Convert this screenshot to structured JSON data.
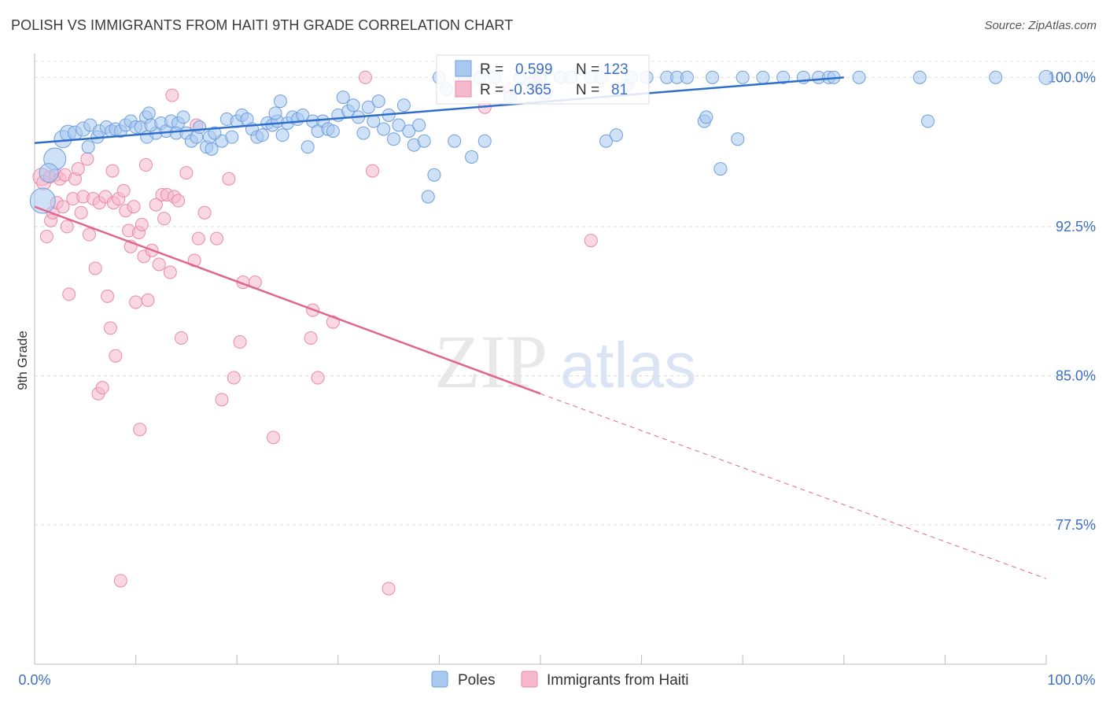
{
  "header": {
    "title": "POLISH VS IMMIGRANTS FROM HAITI 9TH GRADE CORRELATION CHART",
    "source": "Source: ZipAtlas.com"
  },
  "watermark": {
    "zip": "ZIP",
    "atlas": "atlas"
  },
  "colors": {
    "poles_fill": "#a8c8f0",
    "poles_stroke": "#6f9fdc",
    "poles_line": "#2f6fcb",
    "haiti_fill": "#f5b8cc",
    "haiti_stroke": "#e88aa8",
    "haiti_line": "#e06690",
    "axis_text": "#3d6fc4"
  },
  "stats": {
    "r_label": "R =",
    "n_label": "N =",
    "poles": {
      "r": "0.599",
      "n": "123"
    },
    "haiti": {
      "r": "-0.365",
      "n": "81"
    }
  },
  "legend": {
    "poles": "Poles",
    "haiti": "Immigrants from Haiti"
  },
  "chart_data": {
    "type": "scatter",
    "xlabel": "",
    "ylabel": "9th Grade",
    "xlim": [
      0,
      100
    ],
    "ylim": [
      70.5,
      101.2
    ],
    "x_tick_labels": [
      "0.0%",
      "100.0%"
    ],
    "y_ticks": [
      {
        "value": 100.0,
        "label": "100.0%"
      },
      {
        "value": 92.5,
        "label": "92.5%"
      },
      {
        "value": 85.0,
        "label": "85.0%"
      },
      {
        "value": 77.5,
        "label": "77.5%"
      }
    ],
    "grid": true,
    "legend_position": "bottom",
    "series": [
      {
        "name": "Poles",
        "trend": {
          "x": [
            0,
            80
          ],
          "y": [
            96.7,
            100.0
          ],
          "dashed_to": null
        },
        "points": [
          [
            0.8,
            93.8,
            16
          ],
          [
            2.0,
            95.9,
            14
          ],
          [
            1.4,
            95.2,
            12
          ],
          [
            2.8,
            96.9,
            11
          ],
          [
            3.3,
            97.2,
            10
          ],
          [
            4.0,
            97.2,
            9
          ],
          [
            4.8,
            97.4,
            9
          ],
          [
            5.5,
            97.6,
            8
          ],
          [
            6.2,
            97.0,
            8
          ],
          [
            6.4,
            97.3,
            8
          ],
          [
            5.3,
            96.5,
            8
          ],
          [
            7.1,
            97.5,
            8
          ],
          [
            7.6,
            97.3,
            8
          ],
          [
            8.0,
            97.4,
            8
          ],
          [
            8.5,
            97.3,
            8
          ],
          [
            9.0,
            97.6,
            8
          ],
          [
            9.5,
            97.8,
            8
          ],
          [
            10.0,
            97.5,
            8
          ],
          [
            10.5,
            97.5,
            8
          ],
          [
            11.0,
            98.0,
            8
          ],
          [
            11.3,
            98.2,
            8
          ],
          [
            11.1,
            97.0,
            8
          ],
          [
            12.0,
            97.2,
            8
          ],
          [
            11.5,
            97.6,
            8
          ],
          [
            12.5,
            97.7,
            8
          ],
          [
            13.0,
            97.3,
            8
          ],
          [
            13.5,
            97.8,
            8
          ],
          [
            14.2,
            97.7,
            8
          ],
          [
            14.0,
            97.2,
            8
          ],
          [
            14.7,
            98.0,
            8
          ],
          [
            15.0,
            97.2,
            8
          ],
          [
            15.5,
            96.8,
            8
          ],
          [
            16.0,
            97.0,
            8
          ],
          [
            16.3,
            97.5,
            8
          ],
          [
            17.0,
            96.5,
            8
          ],
          [
            17.5,
            96.4,
            8
          ],
          [
            17.3,
            97.0,
            8
          ],
          [
            18.5,
            96.8,
            8
          ],
          [
            17.8,
            97.2,
            8
          ],
          [
            19.0,
            97.9,
            8
          ],
          [
            19.5,
            97.0,
            8
          ],
          [
            20.0,
            97.8,
            8
          ],
          [
            20.5,
            98.1,
            8
          ],
          [
            21.0,
            97.9,
            8
          ],
          [
            21.5,
            97.4,
            8
          ],
          [
            22.0,
            97.0,
            8
          ],
          [
            22.5,
            97.1,
            8
          ],
          [
            23.0,
            97.7,
            8
          ],
          [
            23.5,
            97.6,
            8
          ],
          [
            24.0,
            97.8,
            8
          ],
          [
            23.8,
            98.2,
            8
          ],
          [
            24.3,
            98.8,
            8
          ],
          [
            24.5,
            97.1,
            8
          ],
          [
            25.0,
            97.7,
            8
          ],
          [
            25.5,
            98.0,
            8
          ],
          [
            26.0,
            97.9,
            8
          ],
          [
            26.5,
            98.1,
            8
          ],
          [
            27.0,
            96.5,
            8
          ],
          [
            27.5,
            97.8,
            8
          ],
          [
            28.0,
            97.3,
            8
          ],
          [
            28.5,
            97.8,
            8
          ],
          [
            29.0,
            97.4,
            8
          ],
          [
            29.5,
            97.3,
            8
          ],
          [
            30.0,
            98.1,
            8
          ],
          [
            30.5,
            99.0,
            8
          ],
          [
            31.0,
            98.3,
            8
          ],
          [
            31.5,
            98.6,
            8
          ],
          [
            32.0,
            98.0,
            8
          ],
          [
            32.5,
            97.2,
            8
          ],
          [
            33.0,
            98.5,
            8
          ],
          [
            33.5,
            97.8,
            8
          ],
          [
            34.0,
            98.8,
            8
          ],
          [
            34.5,
            97.4,
            8
          ],
          [
            35.0,
            98.1,
            8
          ],
          [
            35.5,
            96.9,
            8
          ],
          [
            36.0,
            97.6,
            8
          ],
          [
            36.5,
            98.6,
            8
          ],
          [
            37.0,
            97.3,
            8
          ],
          [
            37.5,
            96.6,
            8
          ],
          [
            38.0,
            97.6,
            8
          ],
          [
            38.5,
            96.8,
            8
          ],
          [
            38.9,
            94.0,
            8
          ],
          [
            39.5,
            95.1,
            8
          ],
          [
            40.0,
            100.0,
            8
          ],
          [
            40.7,
            99.4,
            8
          ],
          [
            41.5,
            96.8,
            8
          ],
          [
            42.5,
            100.0,
            8
          ],
          [
            43.2,
            96.0,
            8
          ],
          [
            44.0,
            100.0,
            8
          ],
          [
            44.5,
            96.8,
            8
          ],
          [
            45.5,
            100.0,
            8
          ],
          [
            47.0,
            99.0,
            8
          ],
          [
            48.0,
            100.0,
            8
          ],
          [
            49.0,
            99.7,
            8
          ],
          [
            50.0,
            100.0,
            8
          ],
          [
            50.5,
            99.2,
            8
          ],
          [
            52.0,
            100.0,
            8
          ],
          [
            53.0,
            100.0,
            8
          ],
          [
            55.0,
            100.0,
            8
          ],
          [
            56.0,
            100.0,
            8
          ],
          [
            56.5,
            96.8,
            8
          ],
          [
            57.5,
            97.1,
            8
          ],
          [
            58.5,
            99.6,
            8
          ],
          [
            59.0,
            100.0,
            8
          ],
          [
            60.5,
            100.0,
            8
          ],
          [
            62.5,
            100.0,
            8
          ],
          [
            63.5,
            100.0,
            8
          ],
          [
            64.5,
            100.0,
            8
          ],
          [
            66.2,
            97.8,
            8
          ],
          [
            66.4,
            98.0,
            8
          ],
          [
            67.0,
            100.0,
            8
          ],
          [
            67.8,
            95.4,
            8
          ],
          [
            69.5,
            96.9,
            8
          ],
          [
            70.0,
            100.0,
            8
          ],
          [
            72.0,
            100.0,
            8
          ],
          [
            74.0,
            100.0,
            8
          ],
          [
            76.0,
            100.0,
            8
          ],
          [
            77.5,
            100.0,
            8
          ],
          [
            78.5,
            100.0,
            8
          ],
          [
            79.0,
            100.0,
            8
          ],
          [
            81.5,
            100.0,
            8
          ],
          [
            87.5,
            100.0,
            8
          ],
          [
            88.3,
            97.8,
            8
          ],
          [
            95.0,
            100.0,
            8
          ],
          [
            100.0,
            100.0,
            9
          ]
        ]
      },
      {
        "name": "Immigrants from Haiti",
        "trend": {
          "x": [
            0,
            50
          ],
          "y": [
            93.5,
            84.1
          ],
          "dashed_to": [
            100,
            74.8
          ]
        },
        "points": [
          [
            0.7,
            95.0,
            11
          ],
          [
            0.9,
            94.7,
            9
          ],
          [
            1.2,
            92.0,
            8
          ],
          [
            1.5,
            95.0,
            8
          ],
          [
            1.6,
            92.8,
            8
          ],
          [
            1.8,
            93.2,
            8
          ],
          [
            2.1,
            95.1,
            8
          ],
          [
            2.2,
            93.7,
            8
          ],
          [
            2.5,
            94.9,
            8
          ],
          [
            2.8,
            93.5,
            8
          ],
          [
            3.0,
            95.1,
            8
          ],
          [
            3.2,
            92.5,
            8
          ],
          [
            3.4,
            89.1,
            8
          ],
          [
            3.8,
            93.9,
            8
          ],
          [
            4.0,
            94.9,
            8
          ],
          [
            4.3,
            95.4,
            8
          ],
          [
            4.6,
            93.2,
            8
          ],
          [
            4.8,
            94.0,
            8
          ],
          [
            5.2,
            95.9,
            8
          ],
          [
            5.4,
            92.1,
            8
          ],
          [
            5.8,
            93.9,
            8
          ],
          [
            6.0,
            90.4,
            8
          ],
          [
            6.4,
            93.7,
            8
          ],
          [
            6.3,
            84.1,
            8
          ],
          [
            6.7,
            84.4,
            8
          ],
          [
            7.0,
            94.0,
            8
          ],
          [
            7.2,
            89.0,
            8
          ],
          [
            7.5,
            87.4,
            8
          ],
          [
            7.8,
            93.7,
            8
          ],
          [
            7.7,
            95.3,
            8
          ],
          [
            8.0,
            86.0,
            8
          ],
          [
            8.3,
            93.9,
            8
          ],
          [
            8.5,
            74.7,
            8
          ],
          [
            8.8,
            94.3,
            8
          ],
          [
            9.0,
            93.3,
            8
          ],
          [
            9.3,
            92.3,
            8
          ],
          [
            9.5,
            91.5,
            8
          ],
          [
            9.8,
            93.5,
            8
          ],
          [
            10.0,
            88.7,
            8
          ],
          [
            10.3,
            92.2,
            8
          ],
          [
            10.6,
            92.6,
            8
          ],
          [
            10.4,
            82.3,
            8
          ],
          [
            10.8,
            91.0,
            8
          ],
          [
            11.0,
            95.6,
            8
          ],
          [
            11.2,
            88.8,
            8
          ],
          [
            11.6,
            91.3,
            8
          ],
          [
            12.0,
            93.6,
            8
          ],
          [
            12.3,
            90.6,
            8
          ],
          [
            12.6,
            94.1,
            8
          ],
          [
            12.8,
            92.9,
            8
          ],
          [
            13.1,
            94.1,
            8
          ],
          [
            13.4,
            90.2,
            8
          ],
          [
            13.8,
            94.0,
            8
          ],
          [
            14.2,
            93.8,
            8
          ],
          [
            14.5,
            86.9,
            8
          ],
          [
            15.0,
            95.2,
            8
          ],
          [
            15.8,
            90.8,
            8
          ],
          [
            16.2,
            91.9,
            8
          ],
          [
            16.8,
            93.2,
            8
          ],
          [
            18.0,
            91.9,
            8
          ],
          [
            18.5,
            83.8,
            8
          ],
          [
            19.2,
            94.9,
            8
          ],
          [
            19.7,
            84.9,
            8
          ],
          [
            20.3,
            86.7,
            8
          ],
          [
            20.6,
            89.7,
            8
          ],
          [
            21.8,
            89.7,
            8
          ],
          [
            23.6,
            81.9,
            8
          ],
          [
            27.3,
            86.9,
            8
          ],
          [
            27.5,
            88.3,
            8
          ],
          [
            28.0,
            84.9,
            8
          ],
          [
            29.5,
            87.7,
            8
          ],
          [
            32.7,
            100.0,
            8
          ],
          [
            33.4,
            95.3,
            8
          ],
          [
            35.0,
            74.3,
            8
          ],
          [
            42.5,
            99.9,
            8
          ],
          [
            44.5,
            98.5,
            8
          ],
          [
            47.0,
            99.4,
            8
          ],
          [
            49.5,
            99.8,
            8
          ],
          [
            55.0,
            91.8,
            8
          ],
          [
            13.6,
            99.1,
            8
          ],
          [
            16.0,
            97.6,
            8
          ]
        ]
      }
    ]
  }
}
